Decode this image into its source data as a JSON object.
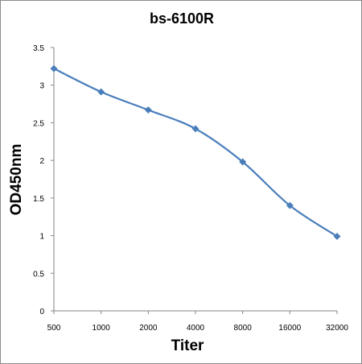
{
  "chart_data": {
    "type": "line",
    "title": "bs-6100R",
    "xlabel": "Titer",
    "ylabel": "OD450nm",
    "categories": [
      "500",
      "1000",
      "2000",
      "4000",
      "8000",
      "16000",
      "32000"
    ],
    "series": [
      {
        "values": [
          3.22,
          2.91,
          2.67,
          2.42,
          1.98,
          1.4,
          0.99
        ]
      }
    ],
    "ylim": [
      0,
      3.5
    ],
    "yticks": [
      "0",
      "0.5",
      "1",
      "1.5",
      "2",
      "2.5",
      "3",
      "3.5"
    ],
    "grid": false,
    "legend": "none",
    "line_color": "#4a7ebb",
    "marker": "diamond"
  }
}
